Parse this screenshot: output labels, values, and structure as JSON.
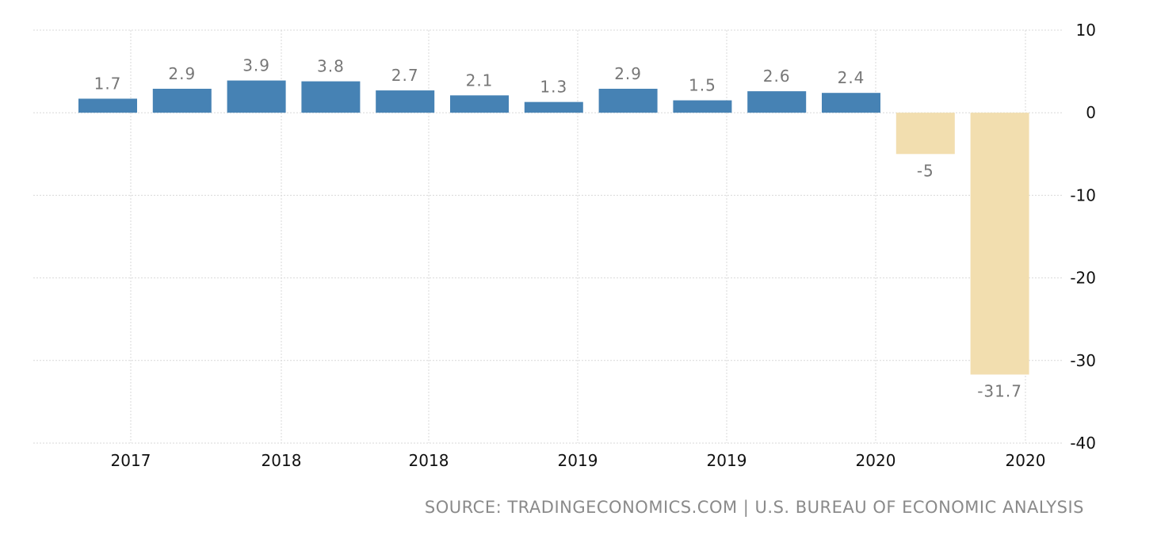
{
  "chart_data": {
    "type": "bar",
    "title": "",
    "xlabel": "",
    "ylabel": "",
    "ylim": [
      -40,
      10
    ],
    "y_ticks": [
      10,
      0,
      -10,
      -20,
      -30,
      -40
    ],
    "x_tick_labels": [
      "2017",
      "2018",
      "2018",
      "2019",
      "2019",
      "2020",
      "2020"
    ],
    "values": [
      1.7,
      2.9,
      3.9,
      3.8,
      2.7,
      2.1,
      1.3,
      2.9,
      1.5,
      2.6,
      2.4,
      -5,
      -31.7
    ],
    "data_labels": [
      "1.7",
      "2.9",
      "3.9",
      "3.8",
      "2.7",
      "2.1",
      "1.3",
      "2.9",
      "1.5",
      "2.6",
      "2.4",
      "-5",
      "-31.7"
    ],
    "grid": true,
    "legend": "none",
    "colors": {
      "positive": "#4682b4",
      "negative": "#f2deaf",
      "label": "#777777",
      "axis_text": "#111111",
      "grid": "#d9d9d9"
    }
  },
  "source": "SOURCE: TRADINGECONOMICS.COM | U.S. BUREAU OF ECONOMIC ANALYSIS"
}
